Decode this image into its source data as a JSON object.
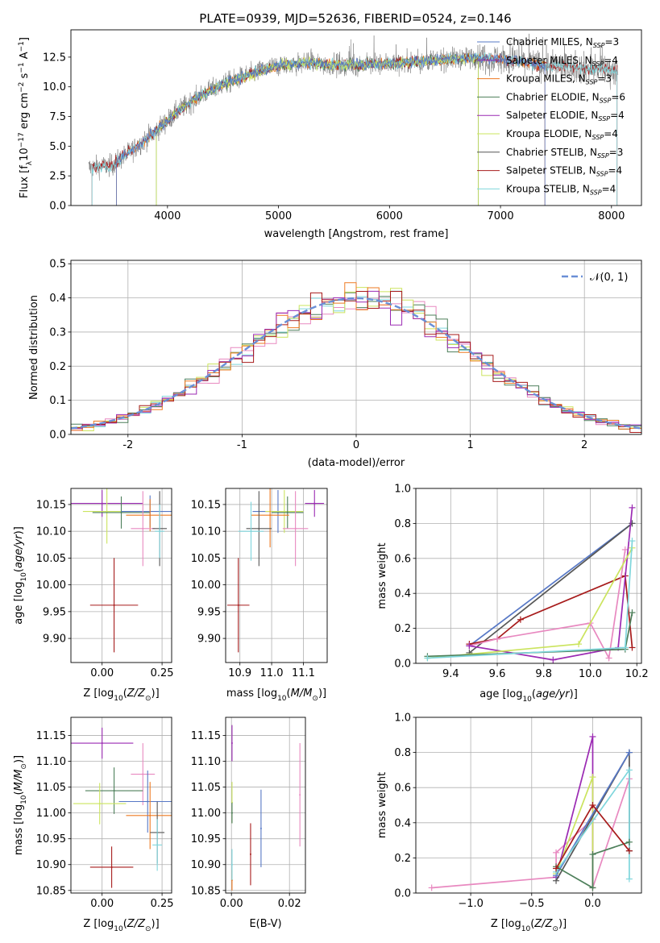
{
  "title": "PLATE=0939, MJD=52636, FIBERID=0524, z=0.146",
  "colors": {
    "Chabrier MILES": "#5778c6",
    "Salpeter MILES": "#8b2db0",
    "Kroupa MILES": "#ee7a22",
    "Chabrier ELODIE": "#4d7f5a",
    "Salpeter ELODIE": "#9b2ab3",
    "Kroupa ELODIE": "#cbe45e",
    "Chabrier STELIB": "#575757",
    "Salpeter STELIB": "#a71b1b",
    "Kroupa STELIB": "#7fd6dc",
    "pink": "#e889c0",
    "gauss": "#6a8fd6"
  },
  "chart_data": [
    {
      "type": "line",
      "id": "spectrum",
      "xlabel": "wavelength [Angstrom, rest frame]",
      "ylabel": "Flux [f_λ10⁻¹⁷ erg cm⁻² s⁻¹ A⁻¹]",
      "xlim": [
        3130,
        8270
      ],
      "ylim": [
        0,
        14.8
      ],
      "xticks": [
        4000,
        5000,
        6000,
        7000,
        8000
      ],
      "yticks": [
        0.0,
        2.5,
        5.0,
        7.5,
        10.0,
        12.5
      ],
      "legend": [
        "Chabrier MILES, N_SSP=3",
        "Salpeter MILES, N_SSP=4",
        "Kroupa MILES, N_SSP=3",
        "Chabrier ELODIE, N_SSP=6",
        "Salpeter ELODIE, N_SSP=4",
        "Kroupa ELODIE, N_SSP=4",
        "Chabrier STELIB, N_SSP=3",
        "Salpeter STELIB, N_SSP=4",
        "Kroupa STELIB, N_SSP=4"
      ],
      "legend_loc": "upper right",
      "data_envelope": {
        "x": [
          3300,
          3500,
          3700,
          3900,
          4100,
          4300,
          4500,
          4700,
          5000,
          5300,
          5600,
          5900,
          6200,
          6500,
          6800,
          7100,
          7400,
          7700,
          8000
        ],
        "y": [
          3.2,
          3.4,
          4.8,
          6.3,
          8.0,
          9.3,
          10.2,
          10.9,
          11.8,
          12.0,
          11.8,
          11.9,
          12.1,
          12.3,
          12.5,
          12.2,
          11.8,
          11.6,
          11.4
        ]
      },
      "model_x_ranges": {
        "MILES": [
          3540,
          7400
        ],
        "ELODIE": [
          3900,
          6800
        ],
        "STELIB": [
          3320,
          8050
        ]
      }
    },
    {
      "type": "histogram",
      "id": "residuals",
      "xlabel": "(data-model)/error",
      "ylabel": "Normed distribution",
      "xlim": [
        -2.5,
        2.5
      ],
      "ylim": [
        0,
        0.51
      ],
      "xticks": [
        -2,
        -1,
        0,
        1,
        2
      ],
      "yticks": [
        0.0,
        0.1,
        0.2,
        0.3,
        0.4,
        0.5
      ],
      "legend": [
        "𝒩(0, 1)"
      ],
      "legend_loc": "upper right",
      "grid": true
    },
    {
      "type": "scatter",
      "id": "age_vs_Z",
      "xlabel": "Z [log₁₀(Z/Z⊙)]",
      "ylabel": "age  [log₁₀(age/yr)]",
      "xlim": [
        -0.13,
        0.29
      ],
      "ylim": [
        9.855,
        10.18
      ],
      "xticks": [
        0.0,
        0.25
      ],
      "xticklabels": [
        "0.00",
        "0.25"
      ],
      "yticks": [
        9.9,
        9.95,
        10.0,
        10.05,
        10.1,
        10.15
      ],
      "yticklabels": [
        "9.90",
        "9.95",
        "10.00",
        "10.05",
        "10.10",
        "10.15"
      ],
      "grid": true,
      "points": [
        {
          "model": "Salpeter ELODIE",
          "x": 0.0,
          "xerr": 0.17,
          "y": 10.152,
          "yerr": 0.025
        },
        {
          "model": "Kroupa ELODIE",
          "x": 0.02,
          "xerr": 0.1,
          "y": 10.137,
          "yerr": 0.06
        },
        {
          "model": "Chabrier ELODIE",
          "x": 0.08,
          "xerr": 0.12,
          "y": 10.135,
          "yerr": 0.03
        },
        {
          "model": "Chabrier MILES",
          "x": 0.2,
          "xerr": 0.12,
          "y": 10.137,
          "yerr": 0.03
        },
        {
          "model": "Kroupa MILES",
          "x": 0.2,
          "xerr": 0.1,
          "y": 10.13,
          "yerr": 0.03
        },
        {
          "model": "pink",
          "x": 0.17,
          "xerr": 0.05,
          "y": 10.105,
          "yerr": 0.07
        },
        {
          "model": "Chabrier STELIB",
          "x": 0.24,
          "xerr": 0.03,
          "y": 10.105,
          "yerr": 0.07
        },
        {
          "model": "Kroupa STELIB",
          "x": 0.24,
          "xerr": 0.02,
          "y": 10.1,
          "yerr": 0.05
        },
        {
          "model": "Salpeter STELIB",
          "x": 0.05,
          "xerr": 0.1,
          "y": 9.962,
          "yerr": 0.088
        }
      ]
    },
    {
      "type": "scatter",
      "id": "age_vs_mass",
      "xlabel": "mass [log₁₀(M/M⊙)]",
      "ylabel": "",
      "xlim": [
        10.855,
        11.175
      ],
      "ylim": [
        9.855,
        10.18
      ],
      "xticks": [
        10.9,
        11.0,
        11.1
      ],
      "xticklabels": [
        "10.9",
        "11.0",
        "11.1"
      ],
      "yticks": [
        9.9,
        9.95,
        10.0,
        10.05,
        10.1,
        10.15
      ],
      "yticklabels": [
        "9.90",
        "9.95",
        "10.00",
        "10.05",
        "10.10",
        "10.15"
      ],
      "grid": true,
      "points": [
        {
          "model": "Salpeter ELODIE",
          "x": 11.135,
          "xerr": 0.03,
          "y": 10.152,
          "yerr": 0.025
        },
        {
          "model": "Chabrier MILES",
          "x": 11.02,
          "xerr": 0.08,
          "y": 10.137,
          "yerr": 0.04
        },
        {
          "model": "Kroupa ELODIE",
          "x": 11.04,
          "xerr": 0.06,
          "y": 10.137,
          "yerr": 0.04
        },
        {
          "model": "Chabrier ELODIE",
          "x": 11.05,
          "xerr": 0.05,
          "y": 10.135,
          "yerr": 0.03
        },
        {
          "model": "Kroupa MILES",
          "x": 10.995,
          "xerr": 0.06,
          "y": 10.13,
          "yerr": 0.06
        },
        {
          "model": "pink",
          "x": 11.075,
          "xerr": 0.04,
          "y": 10.105,
          "yerr": 0.07
        },
        {
          "model": "Chabrier STELIB",
          "x": 10.96,
          "xerr": 0.04,
          "y": 10.105,
          "yerr": 0.07
        },
        {
          "model": "Kroupa STELIB",
          "x": 10.935,
          "xerr": 0.04,
          "y": 10.1,
          "yerr": 0.055
        },
        {
          "model": "Salpeter STELIB",
          "x": 10.895,
          "xerr": 0.035,
          "y": 9.962,
          "yerr": 0.088
        }
      ]
    },
    {
      "type": "line",
      "id": "massweight_vs_age",
      "xlabel": "age  [log₁₀(age/yr)]",
      "ylabel": "mass weight",
      "xlim": [
        9.25,
        10.22
      ],
      "ylim": [
        0,
        1.0
      ],
      "xticks": [
        9.4,
        9.6,
        9.8,
        10.0,
        10.2
      ],
      "xticklabels": [
        "9.4",
        "9.6",
        "9.8",
        "10.0",
        "10.2"
      ],
      "yticks": [
        0.0,
        0.2,
        0.4,
        0.6,
        0.8,
        1.0
      ],
      "yticklabels": [
        "0.0",
        "0.2",
        "0.4",
        "0.6",
        "0.8",
        "1.0"
      ],
      "grid": true,
      "series": [
        {
          "model": "Chabrier MILES",
          "x": [
            9.48,
            10.18
          ],
          "y": [
            0.1,
            0.8
          ]
        },
        {
          "model": "Chabrier STELIB",
          "x": [
            9.48,
            10.18
          ],
          "y": [
            0.06,
            0.8
          ]
        },
        {
          "model": "Salpeter STELIB",
          "x": [
            9.48,
            9.6,
            9.7,
            10.15,
            10.18
          ],
          "y": [
            0.11,
            0.14,
            0.25,
            0.5,
            0.09
          ]
        },
        {
          "model": "pink",
          "x": [
            9.48,
            9.6,
            10.0,
            10.08,
            10.15
          ],
          "y": [
            0.1,
            0.14,
            0.23,
            0.03,
            0.65
          ]
        },
        {
          "model": "Salpeter ELODIE",
          "x": [
            9.48,
            9.84,
            10.12,
            10.18
          ],
          "y": [
            0.1,
            0.02,
            0.09,
            0.89
          ]
        },
        {
          "model": "Kroupa ELODIE",
          "x": [
            9.3,
            9.95,
            10.18
          ],
          "y": [
            0.03,
            0.11,
            0.66
          ]
        },
        {
          "model": "Chabrier ELODIE",
          "x": [
            9.3,
            10.15,
            10.18
          ],
          "y": [
            0.04,
            0.08,
            0.29
          ]
        },
        {
          "model": "Kroupa STELIB",
          "x": [
            9.3,
            10.15,
            10.18
          ],
          "y": [
            0.03,
            0.09,
            0.7
          ]
        }
      ]
    },
    {
      "type": "scatter",
      "id": "mass_vs_Z",
      "xlabel": "Z [log₁₀(Z/Z⊙)]",
      "ylabel": "mass [log₁₀(M/M⊙)]",
      "xlim": [
        -0.13,
        0.29
      ],
      "ylim": [
        10.845,
        11.185
      ],
      "xticks": [
        0.0,
        0.25
      ],
      "xticklabels": [
        "0.00",
        "0.25"
      ],
      "yticks": [
        10.85,
        10.9,
        10.95,
        11.0,
        11.05,
        11.1,
        11.15
      ],
      "yticklabels": [
        "10.85",
        "10.90",
        "10.95",
        "11.00",
        "11.05",
        "11.10",
        "11.15"
      ],
      "grid": true,
      "points": [
        {
          "model": "Salpeter ELODIE",
          "x": 0.0,
          "xerr": 0.13,
          "y": 11.135,
          "yerr": 0.03
        },
        {
          "model": "pink",
          "x": 0.17,
          "xerr": 0.05,
          "y": 11.075,
          "yerr": 0.06
        },
        {
          "model": "Chabrier ELODIE",
          "x": 0.05,
          "xerr": 0.12,
          "y": 11.043,
          "yerr": 0.045
        },
        {
          "model": "Chabrier MILES",
          "x": 0.19,
          "xerr": 0.12,
          "y": 11.022,
          "yerr": 0.06
        },
        {
          "model": "Kroupa ELODIE",
          "x": -0.01,
          "xerr": 0.11,
          "y": 11.018,
          "yerr": 0.04
        },
        {
          "model": "Kroupa MILES",
          "x": 0.2,
          "xerr": 0.1,
          "y": 10.995,
          "yerr": 0.065
        },
        {
          "model": "Chabrier STELIB",
          "x": 0.23,
          "xerr": 0.03,
          "y": 10.962,
          "yerr": 0.06
        },
        {
          "model": "Kroupa STELIB",
          "x": 0.23,
          "xerr": 0.02,
          "y": 10.938,
          "yerr": 0.05
        },
        {
          "model": "Salpeter STELIB",
          "x": 0.04,
          "xerr": 0.09,
          "y": 10.895,
          "yerr": 0.04
        }
      ]
    },
    {
      "type": "scatter",
      "id": "mass_vs_ebv",
      "xlabel": "E(B-V)",
      "ylabel": "",
      "xlim": [
        -0.002,
        0.0255
      ],
      "ylim": [
        10.845,
        11.185
      ],
      "xticks": [
        0.0,
        0.02
      ],
      "xticklabels": [
        "0.00",
        "0.02"
      ],
      "yticks": [
        10.85,
        10.9,
        10.95,
        11.0,
        11.05,
        11.1,
        11.15
      ],
      "yticklabels": [
        "10.85",
        "10.90",
        "10.95",
        "11.00",
        "11.05",
        "11.10",
        "11.15"
      ],
      "grid": true,
      "points": [
        {
          "model": "Salpeter ELODIE",
          "x": 0.0002,
          "y": 11.135,
          "yerr": 0.035
        },
        {
          "model": "Kroupa ELODIE",
          "x": 0.0002,
          "y": 11.02,
          "yerr": 0.04
        },
        {
          "model": "Chabrier ELODIE",
          "x": 0.0002,
          "y": 11.0,
          "yerr": 0.02
        },
        {
          "model": "Kroupa MILES",
          "x": 0.0002,
          "y": 10.87,
          "yerr": 0.02
        },
        {
          "model": "Kroupa STELIB",
          "x": 0.0002,
          "y": 10.9,
          "yerr": 0.03
        },
        {
          "model": "Chabrier MILES",
          "x": 0.0102,
          "y": 10.97,
          "yerr": 0.075
        },
        {
          "model": "Salpeter STELIB",
          "x": 0.0066,
          "y": 10.92,
          "yerr": 0.06
        },
        {
          "model": "pink",
          "x": 0.0236,
          "y": 11.035,
          "yerr": 0.1
        }
      ]
    },
    {
      "type": "line",
      "id": "massweight_vs_Z",
      "xlabel": "Z [log₁₀(Z/Z⊙)]",
      "ylabel": "mass weight",
      "xlim": [
        -1.45,
        0.4
      ],
      "ylim": [
        0,
        1.0
      ],
      "xticks": [
        -1.0,
        -0.5,
        0.0
      ],
      "xticklabels": [
        "−1.0",
        "−0.5",
        "0.0"
      ],
      "yticks": [
        0.0,
        0.2,
        0.4,
        0.6,
        0.8,
        1.0
      ],
      "yticklabels": [
        "0.0",
        "0.2",
        "0.4",
        "0.6",
        "0.8",
        "1.0"
      ],
      "grid": true,
      "series": [
        {
          "model": "pink",
          "x": [
            -1.32,
            -0.3,
            -0.3,
            0.0,
            0.0,
            0.3
          ],
          "y": [
            0.03,
            0.09,
            0.23,
            0.42,
            0.03,
            0.65
          ]
        },
        {
          "model": "Salpeter ELODIE",
          "x": [
            -0.3,
            0.0,
            0.0
          ],
          "y": [
            0.09,
            0.89,
            0.03
          ]
        },
        {
          "model": "Kroupa ELODIE",
          "x": [
            -0.3,
            0.0,
            0.0
          ],
          "y": [
            0.11,
            0.66,
            0.03
          ]
        },
        {
          "model": "Chabrier STELIB",
          "x": [
            -0.3,
            0.3,
            0.3
          ],
          "y": [
            0.07,
            0.8,
            0.24
          ]
        },
        {
          "model": "Chabrier MILES",
          "x": [
            -0.3,
            0.3
          ],
          "y": [
            0.1,
            0.8
          ]
        },
        {
          "model": "Kroupa STELIB",
          "x": [
            -0.3,
            0.3,
            0.3
          ],
          "y": [
            0.12,
            0.7,
            0.08
          ]
        },
        {
          "model": "Chabrier ELODIE",
          "x": [
            -0.3,
            0.0,
            0.0,
            0.3
          ],
          "y": [
            0.15,
            0.03,
            0.22,
            0.29
          ]
        },
        {
          "model": "Salpeter STELIB",
          "x": [
            -0.3,
            0.0,
            0.3
          ],
          "y": [
            0.14,
            0.5,
            0.24
          ]
        }
      ]
    }
  ]
}
